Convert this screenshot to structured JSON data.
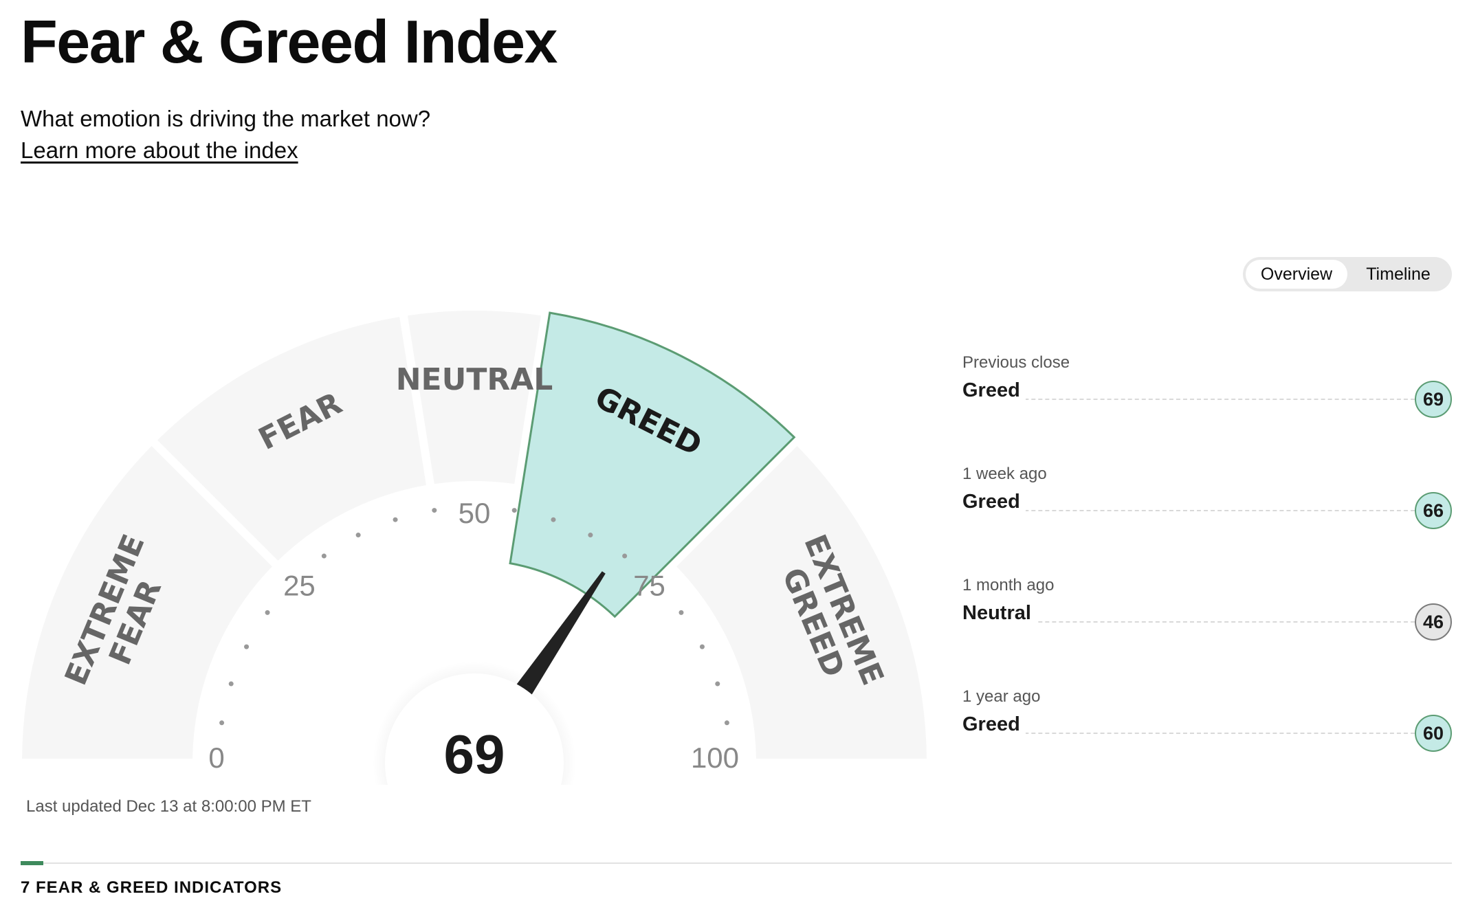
{
  "header": {
    "title": "Fear & Greed Index",
    "subtitle": "What emotion is driving the market now?",
    "learn_more": "Learn more about the index"
  },
  "view_toggle": {
    "options": [
      "Overview",
      "Timeline"
    ],
    "selected": "Overview"
  },
  "gauge": {
    "value": 69,
    "value_label": "69",
    "active_segment": "GREED",
    "segments": [
      {
        "lines": [
          "EXTREME",
          "FEAR"
        ],
        "from": 0,
        "to": 25
      },
      {
        "lines": [
          "FEAR"
        ],
        "from": 25,
        "to": 45
      },
      {
        "lines": [
          "NEUTRAL"
        ],
        "from": 45,
        "to": 55
      },
      {
        "lines": [
          "GREED"
        ],
        "from": 55,
        "to": 75
      },
      {
        "lines": [
          "EXTREME",
          "GREED"
        ],
        "from": 75,
        "to": 100
      }
    ],
    "ticks": [
      {
        "value": 0,
        "label": "0"
      },
      {
        "value": 25,
        "label": "25"
      },
      {
        "value": 50,
        "label": "50"
      },
      {
        "value": 75,
        "label": "75"
      },
      {
        "value": 100,
        "label": "100"
      }
    ],
    "colors": {
      "segment_bg": "#f6f6f6",
      "active_fill": "#c4eae6",
      "active_stroke": "#5b9c73",
      "needle": "#222222",
      "label": "#666666",
      "active_label": "#1a1a1a",
      "tick_label": "#888888",
      "dot": "#999999"
    }
  },
  "history": [
    {
      "label": "Previous close",
      "rating": "Greed",
      "value": "69",
      "color": "#c4eae6",
      "border": "#5b9c73"
    },
    {
      "label": "1 week ago",
      "rating": "Greed",
      "value": "66",
      "color": "#c4eae6",
      "border": "#5b9c73"
    },
    {
      "label": "1 month ago",
      "rating": "Neutral",
      "value": "46",
      "color": "#e6e6e6",
      "border": "#7a7a7a"
    },
    {
      "label": "1 year ago",
      "rating": "Greed",
      "value": "60",
      "color": "#c4eae6",
      "border": "#5b9c73"
    }
  ],
  "last_updated": "Last updated Dec 13 at 8:00:00 PM ET",
  "indicators_title": "7 FEAR & GREED INDICATORS"
}
